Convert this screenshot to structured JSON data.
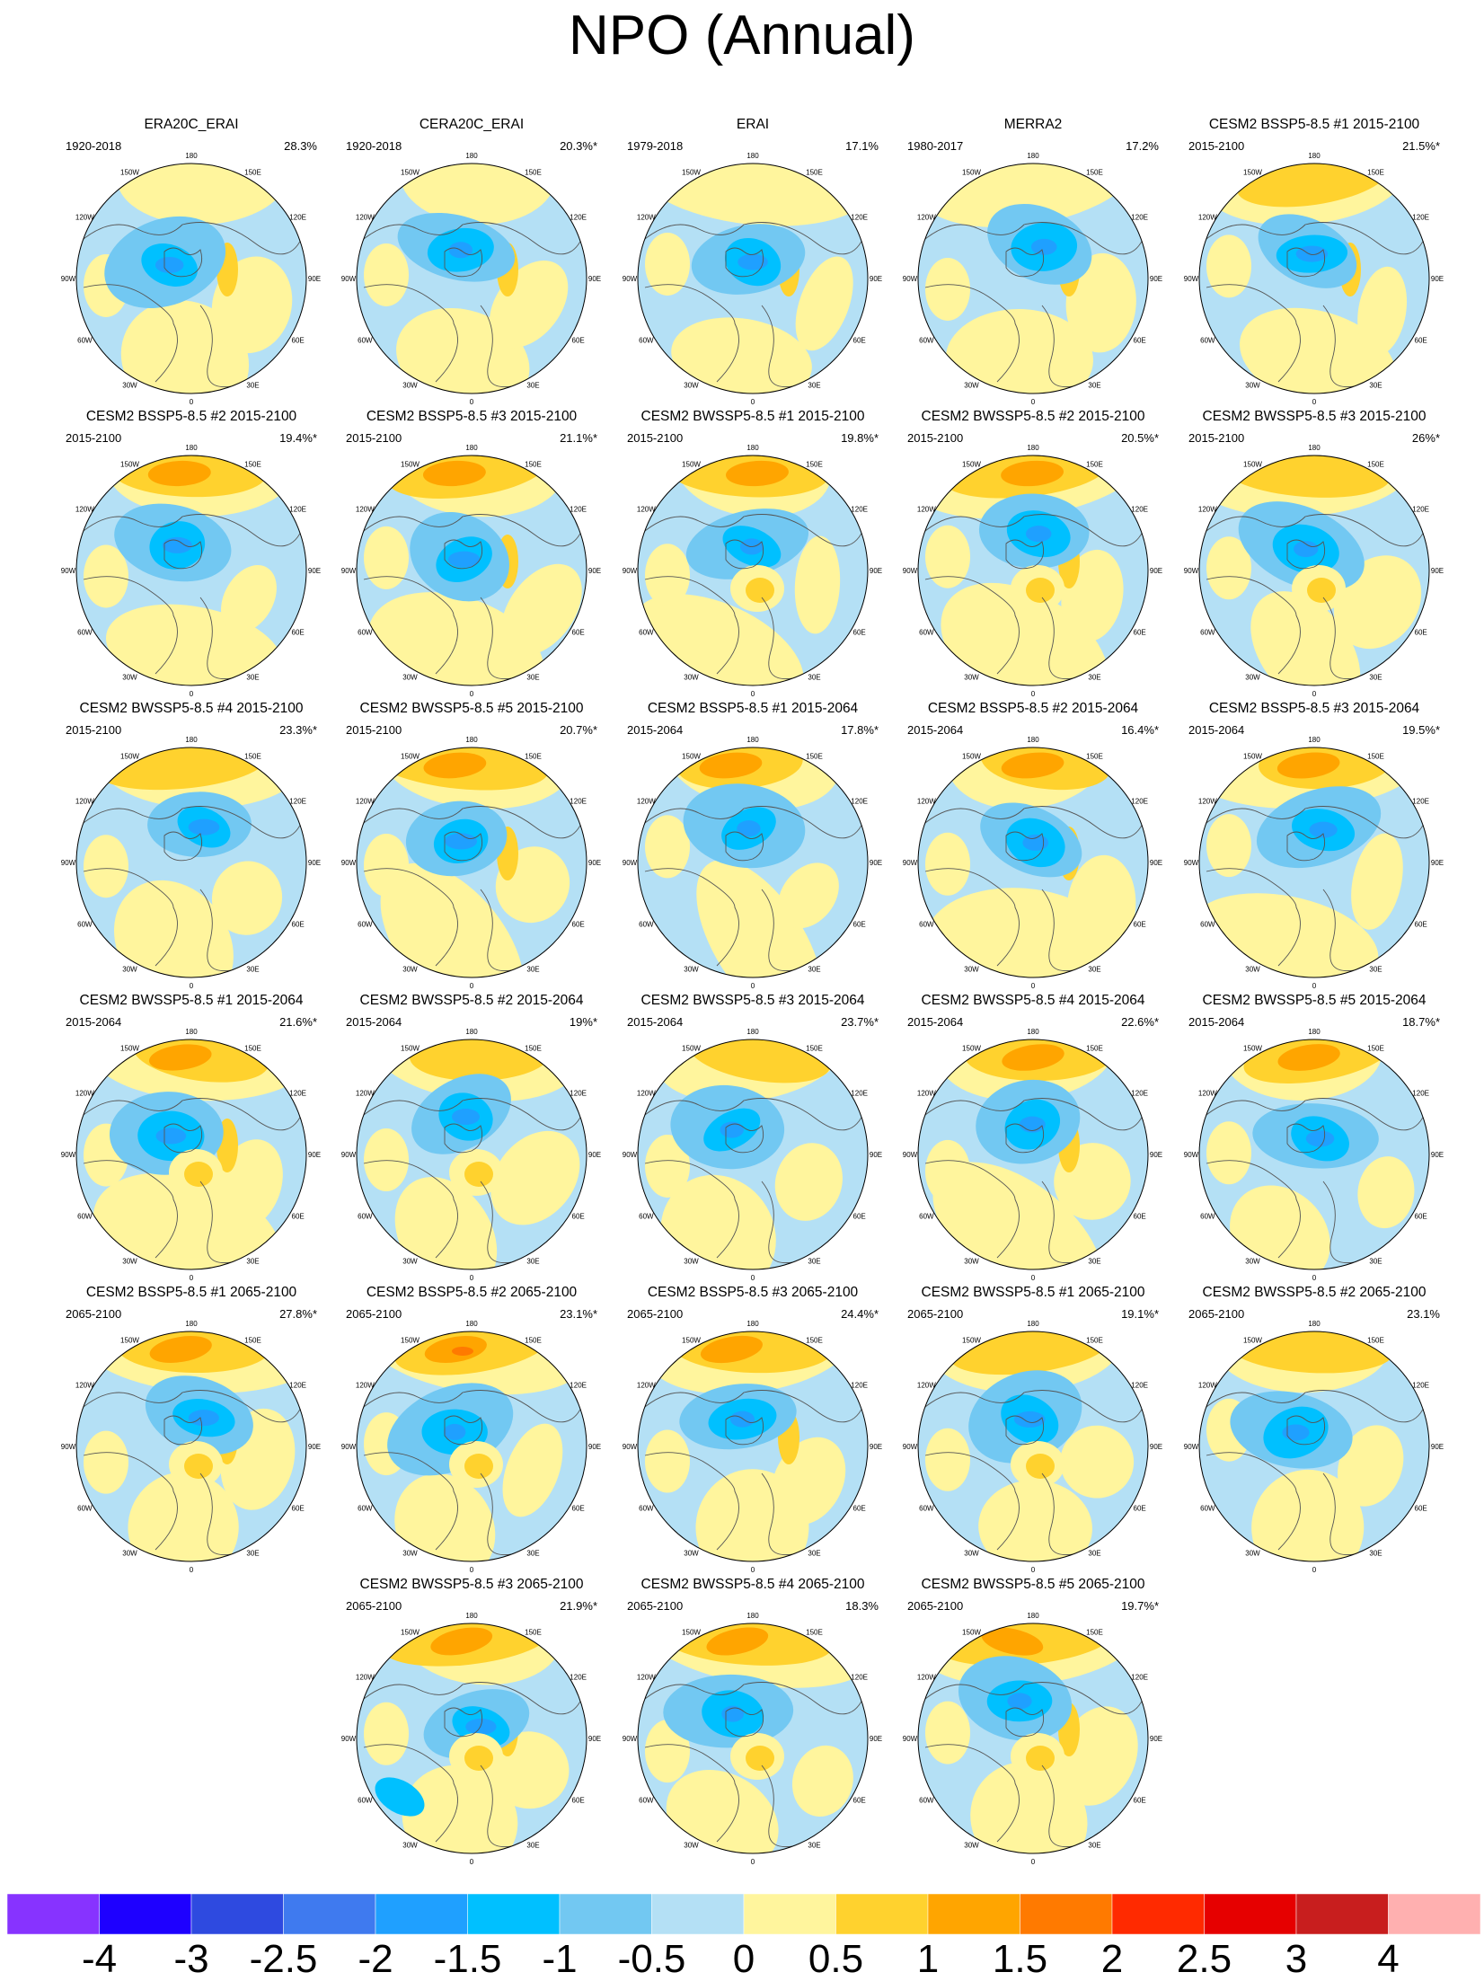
{
  "title": "NPO (Annual)",
  "lon_labels": [
    "180",
    "150E",
    "120E",
    "90E",
    "60E",
    "30E",
    "0",
    "30W",
    "60W",
    "90W",
    "120W",
    "150W"
  ],
  "colorbar": {
    "colors": [
      "#8733ff",
      "#1e00ff",
      "#2e4ae0",
      "#3f7aef",
      "#1fa0ff",
      "#00c0ff",
      "#72c8f2",
      "#b4e0f5",
      "#fff59d",
      "#ffd22e",
      "#ffa500",
      "#ff7a00",
      "#ff2a00",
      "#e60000",
      "#c81e1e",
      "#ffb0b0"
    ],
    "labels": [
      "-4",
      "-3",
      "-2.5",
      "-2",
      "-1.5",
      "-1",
      "-0.5",
      "0",
      "0.5",
      "1",
      "1.5",
      "2",
      "2.5",
      "3",
      "4"
    ]
  },
  "chart_data": {
    "type": "heatmap",
    "title": "NPO (Annual)",
    "projection": "north polar stereographic",
    "levels": [
      -4,
      -3,
      -2.5,
      -2,
      -1.5,
      -1,
      -0.5,
      0,
      0.5,
      1,
      1.5,
      2,
      2.5,
      3,
      4
    ],
    "panels": [
      {
        "title": "ERA20C_ERAI",
        "period": "1920-2018",
        "variance": "28.3%"
      },
      {
        "title": "CERA20C_ERAI",
        "period": "1920-2018",
        "variance": "20.3%*"
      },
      {
        "title": "ERAI",
        "period": "1979-2018",
        "variance": "17.1%"
      },
      {
        "title": "MERRA2",
        "period": "1980-2017",
        "variance": "17.2%"
      },
      {
        "title": "CESM2 BSSP5-8.5 #1 2015-2100",
        "period": "2015-2100",
        "variance": "21.5%*"
      },
      {
        "title": "CESM2 BSSP5-8.5 #2 2015-2100",
        "period": "2015-2100",
        "variance": "19.4%*"
      },
      {
        "title": "CESM2 BSSP5-8.5 #3 2015-2100",
        "period": "2015-2100",
        "variance": "21.1%*"
      },
      {
        "title": "CESM2 BWSSP5-8.5 #1 2015-2100",
        "period": "2015-2100",
        "variance": "19.8%*"
      },
      {
        "title": "CESM2 BWSSP5-8.5 #2 2015-2100",
        "period": "2015-2100",
        "variance": "20.5%*"
      },
      {
        "title": "CESM2 BWSSP5-8.5 #3 2015-2100",
        "period": "2015-2100",
        "variance": "26%*"
      },
      {
        "title": "CESM2 BWSSP5-8.5 #4 2015-2100",
        "period": "2015-2100",
        "variance": "23.3%*"
      },
      {
        "title": "CESM2 BWSSP5-8.5 #5 2015-2100",
        "period": "2015-2100",
        "variance": "20.7%*"
      },
      {
        "title": "CESM2 BSSP5-8.5 #1 2015-2064",
        "period": "2015-2064",
        "variance": "17.8%*"
      },
      {
        "title": "CESM2 BSSP5-8.5 #2 2015-2064",
        "period": "2015-2064",
        "variance": "16.4%*"
      },
      {
        "title": "CESM2 BSSP5-8.5 #3 2015-2064",
        "period": "2015-2064",
        "variance": "19.5%*"
      },
      {
        "title": "CESM2 BWSSP5-8.5 #1 2015-2064",
        "period": "2015-2064",
        "variance": "21.6%*"
      },
      {
        "title": "CESM2 BWSSP5-8.5 #2 2015-2064",
        "period": "2015-2064",
        "variance": "19%*"
      },
      {
        "title": "CESM2 BWSSP5-8.5 #3 2015-2064",
        "period": "2015-2064",
        "variance": "23.7%*"
      },
      {
        "title": "CESM2 BWSSP5-8.5 #4 2015-2064",
        "period": "2015-2064",
        "variance": "22.6%*"
      },
      {
        "title": "CESM2 BWSSP5-8.5 #5 2015-2064",
        "period": "2015-2064",
        "variance": "18.7%*"
      },
      {
        "title": "CESM2 BSSP5-8.5 #1 2065-2100",
        "period": "2065-2100",
        "variance": "27.8%*"
      },
      {
        "title": "CESM2 BSSP5-8.5 #2 2065-2100",
        "period": "2065-2100",
        "variance": "23.1%*"
      },
      {
        "title": "CESM2 BSSP5-8.5 #3 2065-2100",
        "period": "2065-2100",
        "variance": "24.4%*"
      },
      {
        "title": "CESM2 BWSSP5-8.5 #1 2065-2100",
        "period": "2065-2100",
        "variance": "19.1%*"
      },
      {
        "title": "CESM2 BWSSP5-8.5 #2 2065-2100",
        "period": "2065-2100",
        "variance": "23.1%"
      },
      {
        "title": "CESM2 BWSSP5-8.5 #3 2065-2100",
        "period": "2065-2100",
        "variance": "21.9%*"
      },
      {
        "title": "CESM2 BWSSP5-8.5 #4 2065-2100",
        "period": "2065-2100",
        "variance": "18.3%"
      },
      {
        "title": "CESM2 BWSSP5-8.5 #5 2065-2100",
        "period": "2065-2100",
        "variance": "19.7%*"
      }
    ]
  }
}
